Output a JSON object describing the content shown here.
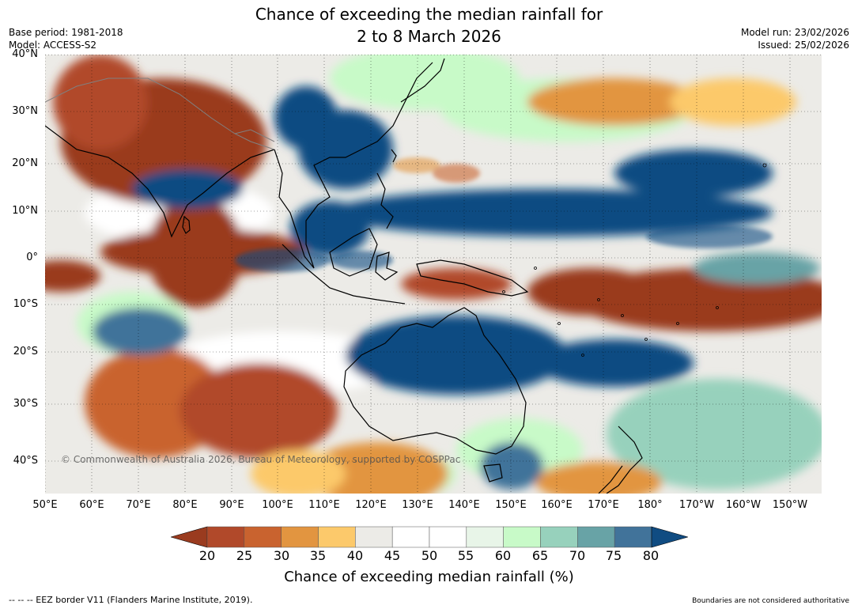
{
  "title": {
    "line1": "Chance of exceeding the median rainfall for",
    "line2": "2 to 8 March 2026"
  },
  "meta": {
    "base_period": "Base period: 1981-2018",
    "model": "Model: ACCESS-S2",
    "model_run": "Model run: 23/02/2026",
    "issued": "Issued: 25/02/2026"
  },
  "map": {
    "lat_labels": [
      "40°N",
      "30°N",
      "20°N",
      "10°N",
      "0°",
      "10°S",
      "20°S",
      "30°S",
      "40°S"
    ],
    "lon_labels": [
      "50°E",
      "60°E",
      "70°E",
      "80°E",
      "90°E",
      "100°E",
      "110°E",
      "120°E",
      "130°E",
      "140°E",
      "150°E",
      "160°E",
      "170°E",
      "180°",
      "170°W",
      "160°W",
      "150°W"
    ],
    "copyright": "© Commonwealth of Australia 2026, Bureau of Meteorology, supported by COSPPac"
  },
  "legend": {
    "ticks": [
      "20",
      "25",
      "30",
      "35",
      "40",
      "45",
      "50",
      "55",
      "60",
      "65",
      "70",
      "75",
      "80"
    ],
    "colors": [
      "#9a3b1f",
      "#b1492a",
      "#c9632f",
      "#e29540",
      "#fcc96b",
      "#ecebe7",
      "#ffffff",
      "#ffffff",
      "#e8f5e8",
      "#c8fac8",
      "#97d1bc",
      "#68a3a6",
      "#41739a",
      "#104c82"
    ],
    "title": "Chance of exceeding median rainfall (%)"
  },
  "footer": {
    "eez": "--  --  -- EEZ border V11 (Flanders Marine Institute, 2019).",
    "disclaimer": "Boundaries are not considered authoritative"
  }
}
